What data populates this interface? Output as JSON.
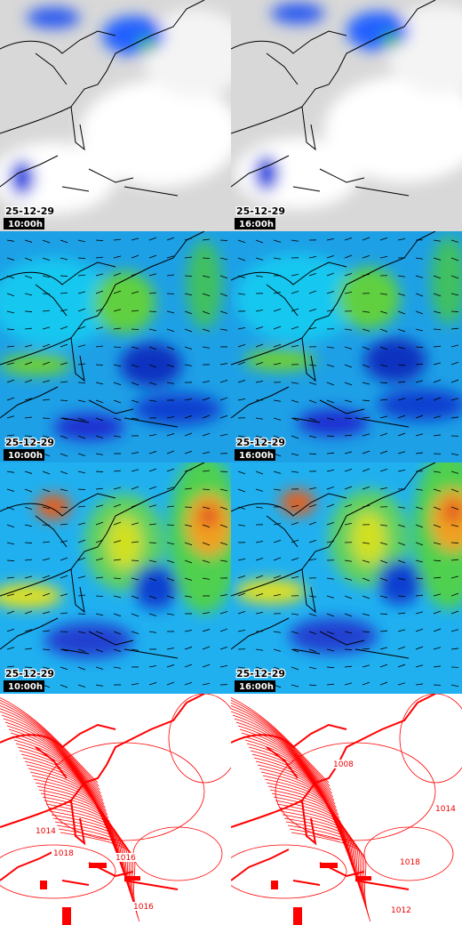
{
  "panels": [
    {
      "date": "25-12-29",
      "time": "10:00h"
    },
    {
      "date": "25-12-29",
      "time": "16:00h"
    },
    {
      "date": "25-12-29",
      "time": "10:00h"
    },
    {
      "date": "25-12-29",
      "time": "16:00h"
    },
    {
      "date": "25-12-29",
      "time": "10:00h"
    },
    {
      "date": "25-12-29",
      "time": "16:00h"
    }
  ],
  "isobar_labels": [
    [
      "1014",
      "1018",
      "1016",
      "1016"
    ],
    [
      "1008",
      "1014",
      "1018",
      "1012"
    ]
  ]
}
